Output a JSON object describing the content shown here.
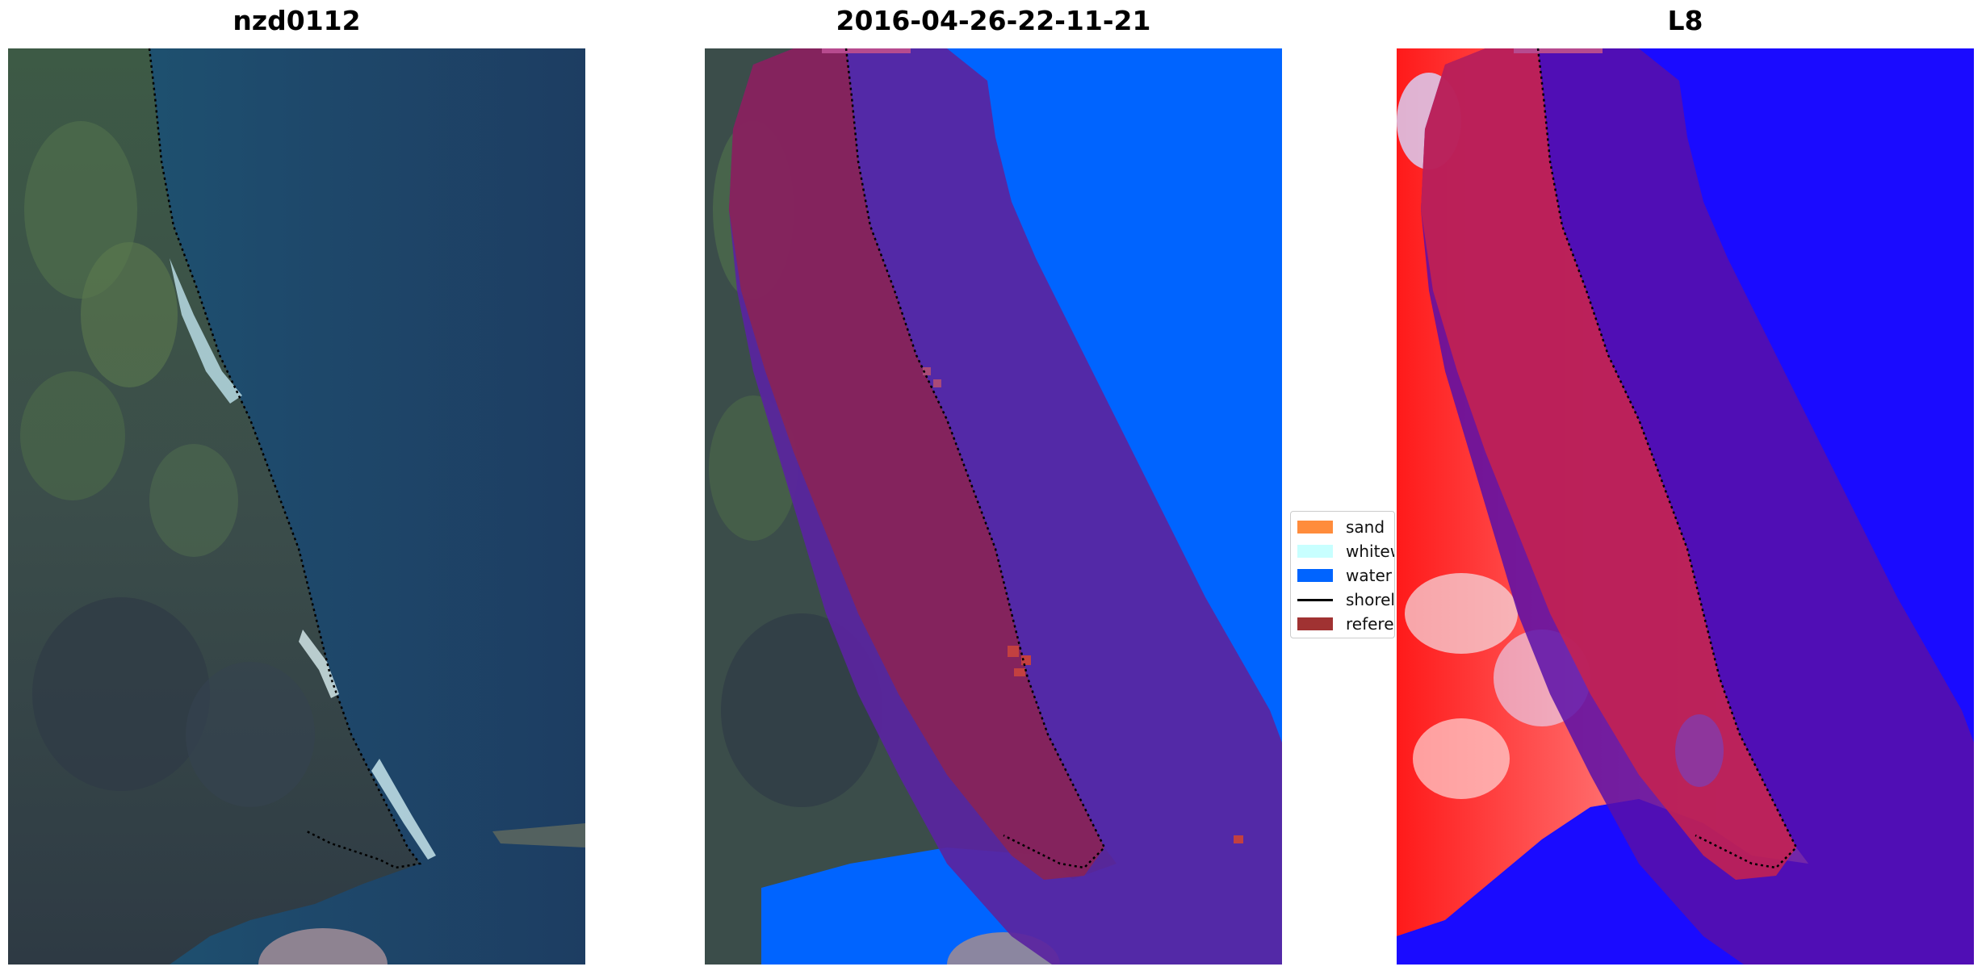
{
  "panels": [
    {
      "title": "nzd0112"
    },
    {
      "title": "2016-04-26-22-11-21"
    },
    {
      "title": "L8"
    }
  ],
  "legend": {
    "items": [
      {
        "label": "sand",
        "color": "#ff8c3c",
        "kind": "patch"
      },
      {
        "label": "whitewater",
        "color": "#c8ffff",
        "kind": "patch"
      },
      {
        "label": "water",
        "color": "#0064ff",
        "kind": "patch"
      },
      {
        "label": "shoreline",
        "color": "#000000",
        "kind": "line"
      },
      {
        "label": "reference shoreline buffer",
        "color": "#a03232",
        "kind": "patch"
      }
    ]
  },
  "colors": {
    "ocean_rgb": "#1e4a6c",
    "land_rgb": "#3b4d4a",
    "water_class": "#0064ff",
    "buffer_overlay": "#6a1f9a",
    "land_buffer": "#8a2456",
    "index_land": "#ff2a2a",
    "index_water": "#1a0bff"
  }
}
